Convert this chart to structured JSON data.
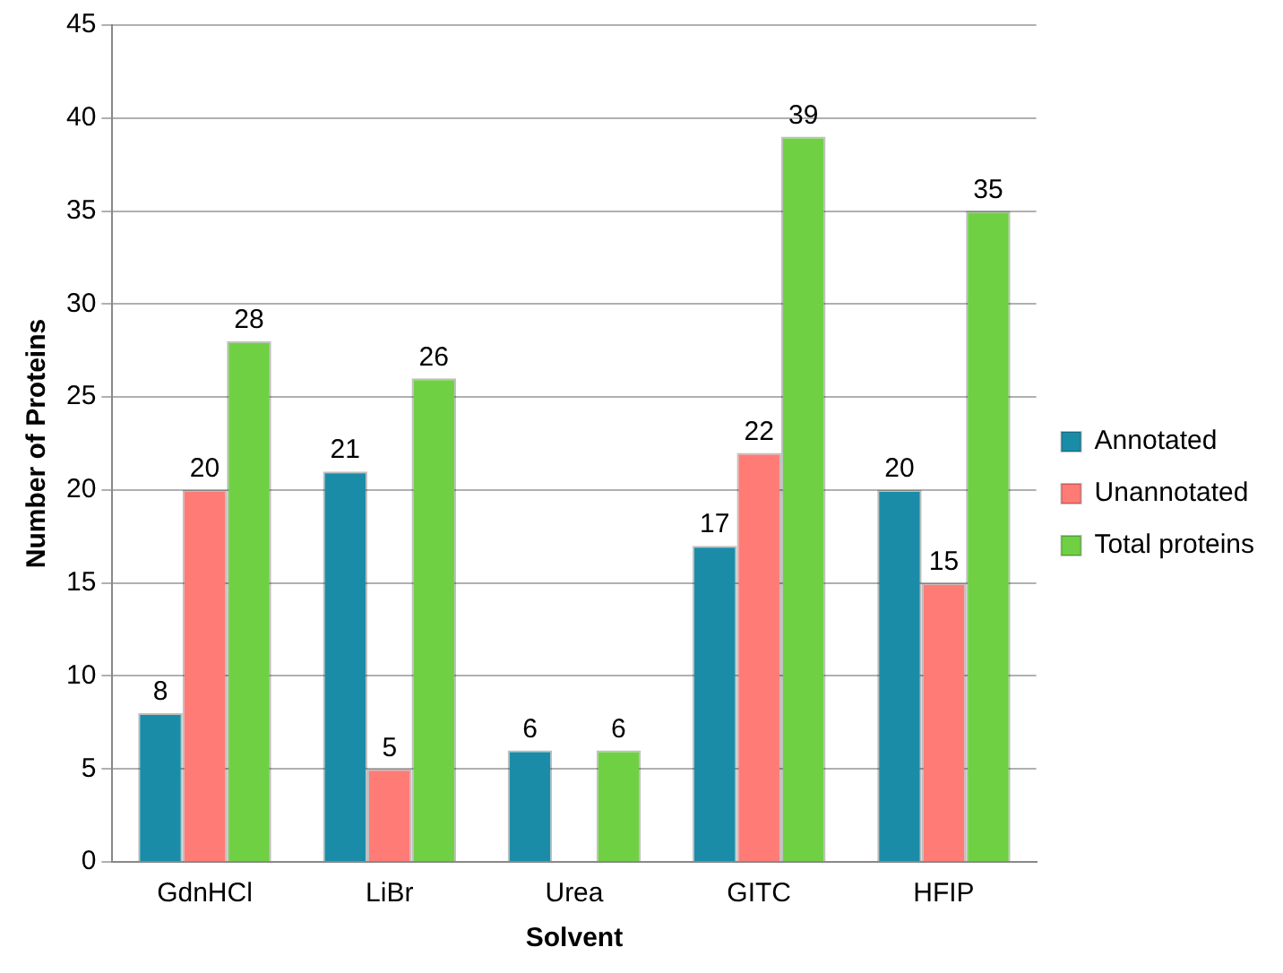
{
  "chart_data": {
    "type": "bar",
    "xlabel": "Solvent",
    "ylabel": "Number of Proteins",
    "categories": [
      "GdnHCl",
      "LiBr",
      "Urea",
      "GITC",
      "HFIP"
    ],
    "series": [
      {
        "name": "Annotated",
        "color": "#1a8ca8",
        "values": [
          8,
          21,
          6,
          17,
          20
        ]
      },
      {
        "name": "Unannotated",
        "color": "#ff7b76",
        "values": [
          20,
          5,
          null,
          22,
          15
        ]
      },
      {
        "name": "Total proteins",
        "color": "#70d044",
        "values": [
          28,
          26,
          6,
          39,
          35
        ]
      }
    ],
    "ylim": [
      0,
      45
    ],
    "yticks": [
      0,
      5,
      10,
      15,
      20,
      25,
      30,
      35,
      40,
      45
    ],
    "grid": "y",
    "legend": "right",
    "data_labels": true
  }
}
